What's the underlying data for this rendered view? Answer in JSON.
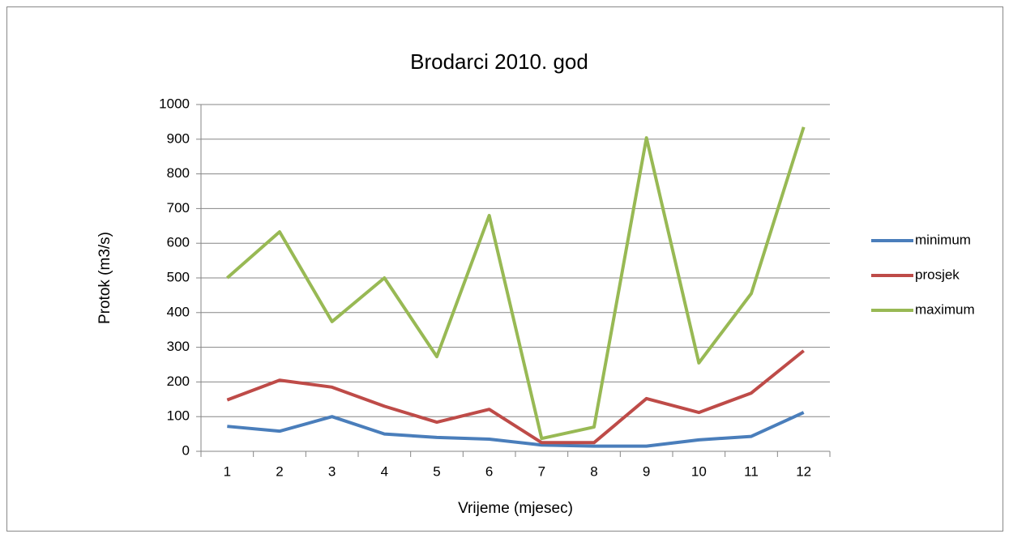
{
  "chart_data": {
    "type": "line",
    "title": "Brodarci 2010. god",
    "x_label": "Vrijeme (mjesec)",
    "y_label": "Protok (m3/s)",
    "categories": [
      "1",
      "2",
      "3",
      "4",
      "5",
      "6",
      "7",
      "8",
      "9",
      "10",
      "11",
      "12"
    ],
    "series": [
      {
        "name": "minimum",
        "color": "#4a7ebb",
        "values": [
          72,
          58,
          100,
          50,
          40,
          35,
          18,
          15,
          15,
          33,
          43,
          112
        ]
      },
      {
        "name": "prosjek",
        "color": "#be4b48",
        "values": [
          148,
          205,
          185,
          130,
          84,
          121,
          25,
          25,
          152,
          112,
          168,
          290
        ]
      },
      {
        "name": "maximum",
        "color": "#98b954",
        "values": [
          500,
          633,
          374,
          500,
          273,
          680,
          37,
          70,
          904,
          255,
          455,
          935
        ]
      }
    ],
    "ylim": [
      0,
      1000
    ],
    "yticks": [
      0,
      100,
      200,
      300,
      400,
      500,
      600,
      700,
      800,
      900,
      1000
    ],
    "grid": true,
    "legend": "right"
  }
}
